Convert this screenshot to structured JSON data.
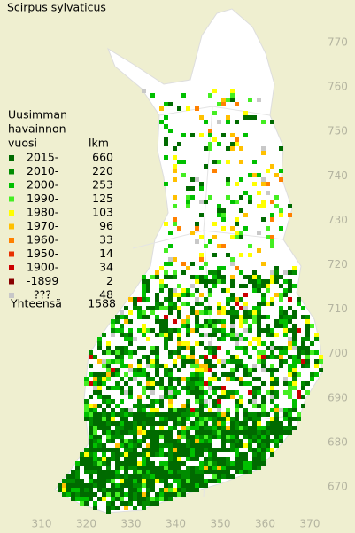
{
  "title": "Scirpus sylvaticus",
  "legend": {
    "heading": [
      "Uusimman",
      "havainnon",
      "vuosi"
    ],
    "count_heading": "lkm",
    "entries": [
      {
        "label": "2015-",
        "count": 660,
        "color": "#006a00"
      },
      {
        "label": "2010-",
        "count": 220,
        "color": "#008c00"
      },
      {
        "label": "2000-",
        "count": 253,
        "color": "#00c000"
      },
      {
        "label": "1990-",
        "count": 125,
        "color": "#44ee22"
      },
      {
        "label": "1980-",
        "count": 103,
        "color": "#ffff00"
      },
      {
        "label": "1970-",
        "count": 96,
        "color": "#ffc000"
      },
      {
        "label": "1960-",
        "count": 33,
        "color": "#ff8000"
      },
      {
        "label": "1950-",
        "count": 14,
        "color": "#e83000"
      },
      {
        "label": "1900-",
        "count": 34,
        "color": "#cc0000"
      },
      {
        "label": "-1899",
        "count": 2,
        "color": "#880000"
      },
      {
        "label": "???",
        "count": 48,
        "color": "#c8c8c8"
      }
    ],
    "total_label": "Yhteensä",
    "total": 1588
  },
  "grid": {
    "x_labels": [
      310,
      320,
      330,
      340,
      350,
      360,
      370
    ],
    "y_labels": [
      670,
      680,
      690,
      700,
      710,
      720,
      730,
      740,
      750,
      760,
      770
    ]
  }
}
